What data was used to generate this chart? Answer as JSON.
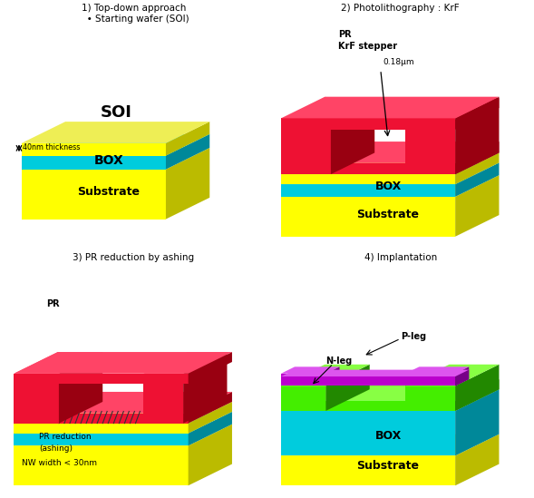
{
  "bg": "#ffffff",
  "Y": "#FFFF00",
  "Ys": "#BBBB00",
  "Yt": "#EEEE55",
  "C": "#00CCDD",
  "Cs": "#008899",
  "Ct": "#44DDEE",
  "R": "#EE1133",
  "Rs": "#990011",
  "Rt": "#FF4466",
  "G": "#44EE00",
  "Gs": "#228800",
  "Gt": "#88FF44",
  "P": "#BB00CC",
  "Ps": "#770088",
  "Pt": "#DD55EE",
  "p1": "1) Top-down approach\n   • Starting wafer (SOI)",
  "p2": "2) Photolithography : KrF",
  "p3": "3) PR reduction by ashing",
  "p4": "4) Implantation",
  "skx": 0.55,
  "sky": 0.27
}
